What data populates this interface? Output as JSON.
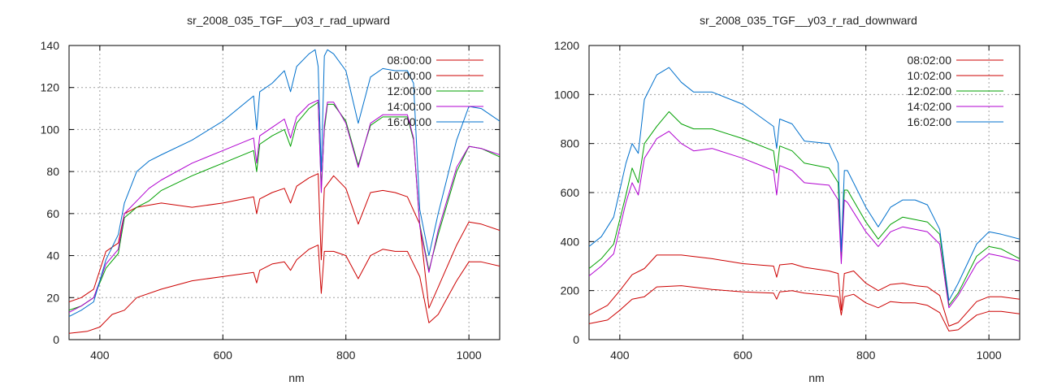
{
  "chart_data": [
    {
      "type": "line",
      "title": "sr_2008_035_TGF__y03_r_rad_upward",
      "xlabel": "nm",
      "ylabel": "",
      "xlim": [
        350,
        1050
      ],
      "ylim": [
        0,
        140
      ],
      "xticks": [
        400,
        600,
        800,
        1000
      ],
      "yticks": [
        0,
        20,
        40,
        60,
        80,
        100,
        120,
        140
      ],
      "grid": true,
      "legend": "top-right",
      "series": [
        {
          "name": "08:00:00",
          "color": "#cc0000",
          "x": [
            350,
            380,
            400,
            420,
            440,
            460,
            500,
            550,
            600,
            650,
            655,
            660,
            680,
            700,
            710,
            720,
            740,
            755,
            760,
            765,
            780,
            800,
            820,
            840,
            860,
            880,
            900,
            920,
            935,
            950,
            980,
            1000,
            1020,
            1050
          ],
          "y": [
            3,
            4,
            6,
            12,
            14,
            20,
            24,
            28,
            30,
            32,
            27,
            33,
            36,
            37,
            33,
            38,
            43,
            45,
            22,
            42,
            42,
            40,
            29,
            40,
            43,
            42,
            42,
            30,
            8,
            12,
            28,
            37,
            37,
            35
          ]
        },
        {
          "name": "10:00:00",
          "color": "#cc0000",
          "x": [
            350,
            370,
            390,
            410,
            430,
            440,
            460,
            500,
            550,
            600,
            650,
            655,
            660,
            680,
            700,
            710,
            720,
            740,
            755,
            760,
            765,
            780,
            800,
            820,
            840,
            860,
            880,
            900,
            920,
            935,
            950,
            980,
            1000,
            1020,
            1050
          ],
          "y": [
            18,
            20,
            24,
            42,
            46,
            60,
            63,
            65,
            63,
            65,
            68,
            60,
            67,
            70,
            72,
            65,
            73,
            77,
            79,
            38,
            72,
            78,
            72,
            55,
            70,
            71,
            70,
            68,
            55,
            15,
            25,
            45,
            56,
            55,
            52
          ]
        },
        {
          "name": "12:00:00",
          "color": "#00a000",
          "x": [
            350,
            370,
            390,
            410,
            430,
            440,
            460,
            480,
            500,
            550,
            600,
            650,
            655,
            660,
            680,
            700,
            710,
            720,
            740,
            755,
            760,
            765,
            770,
            780,
            800,
            820,
            840,
            860,
            880,
            900,
            910,
            920,
            935,
            950,
            980,
            1000,
            1020,
            1050
          ],
          "y": [
            14,
            16,
            20,
            34,
            41,
            58,
            63,
            66,
            71,
            78,
            84,
            90,
            80,
            93,
            97,
            100,
            92,
            103,
            110,
            113,
            72,
            100,
            112,
            112,
            104,
            83,
            102,
            106,
            106,
            106,
            95,
            55,
            33,
            50,
            80,
            92,
            91,
            87
          ]
        },
        {
          "name": "14:00:00",
          "color": "#b000d0",
          "x": [
            350,
            370,
            390,
            410,
            430,
            440,
            460,
            480,
            500,
            550,
            600,
            650,
            655,
            660,
            680,
            700,
            710,
            720,
            740,
            755,
            760,
            765,
            770,
            780,
            800,
            820,
            840,
            860,
            880,
            900,
            910,
            920,
            935,
            950,
            980,
            1000,
            1020,
            1050
          ],
          "y": [
            13,
            16,
            20,
            36,
            43,
            60,
            66,
            72,
            76,
            84,
            90,
            96,
            84,
            97,
            101,
            105,
            96,
            106,
            112,
            114,
            70,
            102,
            113,
            113,
            103,
            82,
            103,
            107,
            107,
            107,
            96,
            54,
            32,
            52,
            82,
            92,
            91,
            88
          ]
        },
        {
          "name": "16:00:00",
          "color": "#0070cc",
          "x": [
            350,
            370,
            390,
            410,
            430,
            440,
            460,
            480,
            500,
            550,
            600,
            650,
            655,
            660,
            680,
            700,
            710,
            720,
            740,
            750,
            755,
            760,
            765,
            770,
            780,
            800,
            820,
            840,
            860,
            880,
            900,
            910,
            920,
            935,
            950,
            980,
            1000,
            1020,
            1050
          ],
          "y": [
            11,
            14,
            18,
            38,
            50,
            65,
            80,
            85,
            88,
            95,
            104,
            116,
            100,
            118,
            122,
            128,
            118,
            130,
            136,
            138,
            130,
            80,
            135,
            138,
            136,
            128,
            103,
            125,
            129,
            128,
            128,
            122,
            62,
            40,
            60,
            95,
            111,
            110,
            104
          ]
        }
      ]
    },
    {
      "type": "line",
      "title": "sr_2008_035_TGF__y03_r_rad_downward",
      "xlabel": "nm",
      "ylabel": "",
      "xlim": [
        350,
        1050
      ],
      "ylim": [
        0,
        1200
      ],
      "xticks": [
        400,
        600,
        800,
        1000
      ],
      "yticks": [
        0,
        200,
        400,
        600,
        800,
        1000,
        1200
      ],
      "grid": true,
      "legend": "top-right",
      "series": [
        {
          "name": "08:02:00",
          "color": "#cc0000",
          "x": [
            350,
            380,
            400,
            420,
            440,
            460,
            500,
            550,
            600,
            650,
            655,
            660,
            680,
            700,
            740,
            755,
            760,
            765,
            780,
            800,
            820,
            840,
            860,
            880,
            900,
            920,
            935,
            950,
            980,
            1000,
            1020,
            1050
          ],
          "y": [
            65,
            80,
            120,
            165,
            175,
            215,
            220,
            205,
            195,
            190,
            165,
            195,
            200,
            190,
            180,
            175,
            100,
            175,
            185,
            150,
            130,
            155,
            150,
            150,
            140,
            110,
            35,
            40,
            100,
            115,
            115,
            105
          ]
        },
        {
          "name": "10:02:00",
          "color": "#cc0000",
          "x": [
            350,
            380,
            400,
            420,
            440,
            460,
            500,
            550,
            600,
            650,
            655,
            660,
            680,
            700,
            740,
            755,
            760,
            765,
            780,
            800,
            820,
            840,
            860,
            880,
            900,
            920,
            935,
            950,
            980,
            1000,
            1020,
            1050
          ],
          "y": [
            100,
            140,
            200,
            265,
            290,
            345,
            345,
            330,
            310,
            300,
            255,
            305,
            310,
            295,
            280,
            270,
            120,
            270,
            280,
            230,
            200,
            225,
            230,
            220,
            215,
            180,
            55,
            70,
            155,
            175,
            175,
            165
          ]
        },
        {
          "name": "12:02:00",
          "color": "#00a000",
          "x": [
            350,
            370,
            390,
            410,
            420,
            430,
            440,
            460,
            480,
            500,
            520,
            550,
            600,
            650,
            655,
            660,
            680,
            700,
            740,
            755,
            760,
            765,
            770,
            800,
            820,
            840,
            860,
            880,
            900,
            920,
            935,
            950,
            980,
            1000,
            1020,
            1050
          ],
          "y": [
            290,
            330,
            390,
            590,
            700,
            640,
            800,
            870,
            930,
            880,
            860,
            860,
            820,
            770,
            680,
            790,
            770,
            720,
            700,
            640,
            330,
            610,
            610,
            480,
            410,
            470,
            500,
            490,
            480,
            430,
            140,
            190,
            340,
            380,
            370,
            330
          ]
        },
        {
          "name": "14:02:00",
          "color": "#b000d0",
          "x": [
            350,
            370,
            390,
            410,
            420,
            430,
            440,
            460,
            480,
            500,
            520,
            550,
            600,
            650,
            655,
            660,
            680,
            700,
            740,
            755,
            760,
            765,
            770,
            800,
            820,
            840,
            860,
            880,
            900,
            920,
            935,
            950,
            980,
            1000,
            1020,
            1050
          ],
          "y": [
            260,
            300,
            350,
            560,
            640,
            590,
            740,
            820,
            850,
            800,
            770,
            780,
            740,
            690,
            590,
            710,
            690,
            640,
            630,
            570,
            310,
            570,
            560,
            440,
            380,
            440,
            460,
            450,
            440,
            390,
            130,
            180,
            310,
            350,
            340,
            320
          ]
        },
        {
          "name": "16:02:00",
          "color": "#0070cc",
          "x": [
            350,
            370,
            390,
            410,
            420,
            430,
            440,
            460,
            480,
            500,
            520,
            550,
            600,
            650,
            655,
            660,
            680,
            700,
            740,
            755,
            760,
            765,
            770,
            800,
            820,
            840,
            860,
            880,
            900,
            920,
            935,
            950,
            980,
            1000,
            1020,
            1050
          ],
          "y": [
            380,
            420,
            500,
            720,
            800,
            760,
            980,
            1080,
            1110,
            1050,
            1010,
            1010,
            960,
            870,
            780,
            900,
            880,
            810,
            800,
            720,
            360,
            690,
            690,
            540,
            460,
            540,
            570,
            570,
            550,
            450,
            160,
            230,
            390,
            440,
            430,
            410
          ]
        }
      ]
    }
  ]
}
